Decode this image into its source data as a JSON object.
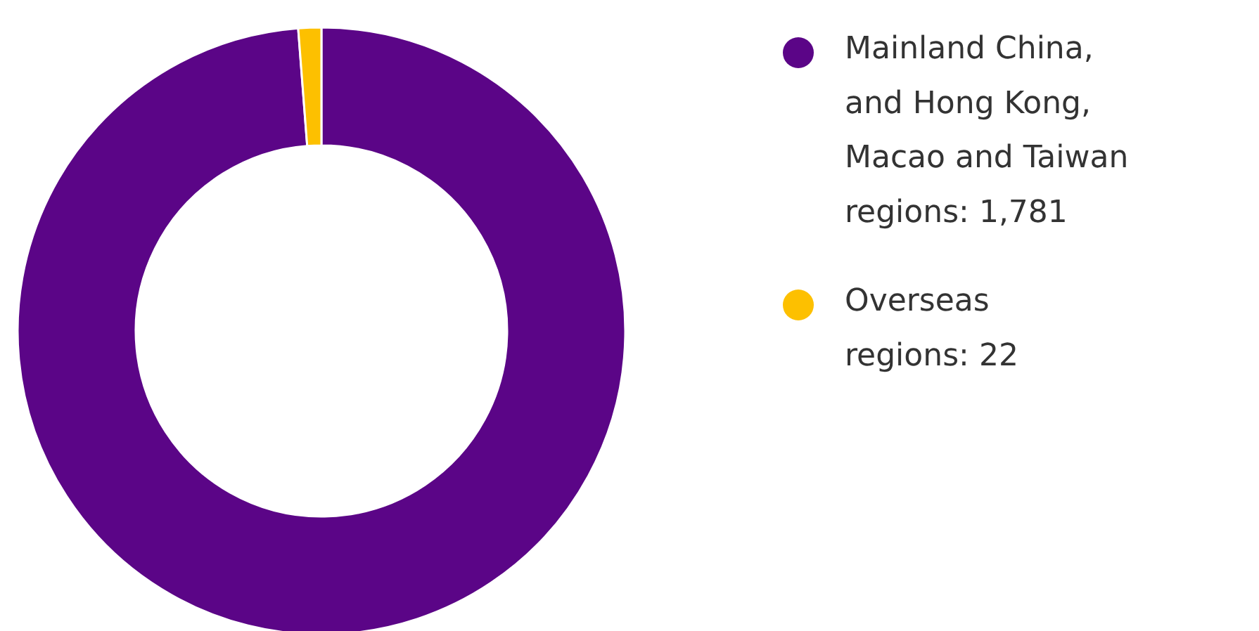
{
  "chart_data": {
    "type": "donut",
    "categories": [
      "Mainland China, and Hong Kong, Macao and Taiwan regions: 1,781",
      "Overseas regions: 22"
    ],
    "values": [
      1781,
      22
    ],
    "colors": [
      "#5b0587",
      "#fdc000"
    ],
    "legend": "right"
  }
}
